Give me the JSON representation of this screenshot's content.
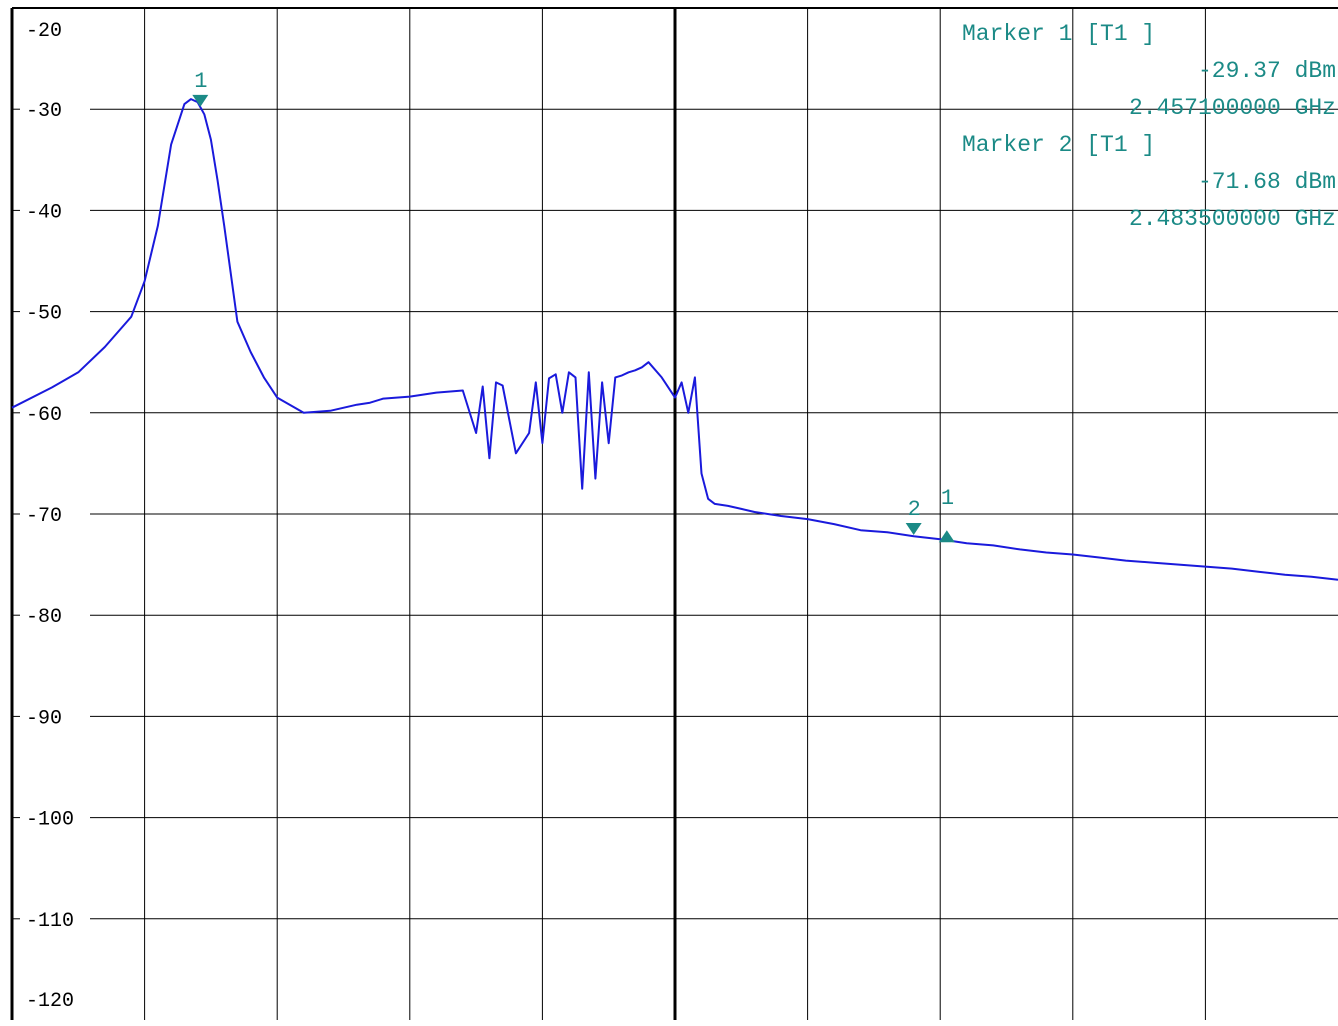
{
  "chart_data": {
    "type": "line",
    "title": "",
    "xlabel": "",
    "ylabel": "",
    "ylim": [
      -120,
      -20
    ],
    "y_ticks": [
      -20,
      -30,
      -40,
      -50,
      -60,
      -70,
      -80,
      -90,
      -100,
      -110,
      -120
    ],
    "y_tick_labels": [
      "-20",
      "-30",
      "-40",
      "-50",
      "-60",
      "-70",
      "-80",
      "-90",
      "-100",
      "-110",
      "-120"
    ],
    "x_range_divisions": [
      0,
      10
    ],
    "grid": true,
    "colors": {
      "trace": "#1a1adc",
      "marker": "#1b8a86",
      "grid": "#000000",
      "axis": "#000000",
      "background": "#ffffff"
    },
    "series": [
      {
        "values_note_x_in_divisions": "",
        "x": [
          0.0,
          0.3,
          0.5,
          0.7,
          0.9,
          1.0,
          1.1,
          1.2,
          1.3,
          1.35,
          1.4,
          1.45,
          1.5,
          1.55,
          1.6,
          1.7,
          1.8,
          1.9,
          2.0,
          2.2,
          2.4,
          2.6,
          2.7,
          2.8,
          3.0,
          3.2,
          3.4,
          3.5,
          3.55,
          3.6,
          3.65,
          3.7,
          3.8,
          3.9,
          3.95,
          4.0,
          4.05,
          4.1,
          4.15,
          4.2,
          4.25,
          4.3,
          4.35,
          4.4,
          4.45,
          4.5,
          4.55,
          4.6,
          4.65,
          4.7,
          4.75,
          4.8,
          4.9,
          5.0,
          5.05,
          5.1,
          5.15,
          5.2,
          5.25,
          5.3,
          5.4,
          5.5,
          5.6,
          5.8,
          6.0,
          6.2,
          6.4,
          6.6,
          6.8,
          7.0,
          7.2,
          7.4,
          7.6,
          7.8,
          8.0,
          8.2,
          8.4,
          8.6,
          8.8,
          9.0,
          9.2,
          9.4,
          9.6,
          9.8,
          10.0
        ],
        "y": [
          -59.5,
          -57.5,
          -56.0,
          -53.5,
          -50.5,
          -47.0,
          -41.5,
          -33.5,
          -29.5,
          -29.0,
          -29.3,
          -30.5,
          -33.0,
          -37.0,
          -41.5,
          -51.0,
          -54.0,
          -56.5,
          -58.5,
          -60.0,
          -59.8,
          -59.2,
          -59.0,
          -58.6,
          -58.4,
          -58.0,
          -57.8,
          -62.0,
          -57.4,
          -64.5,
          -57.0,
          -57.3,
          -64.0,
          -62.0,
          -57.0,
          -63.0,
          -56.6,
          -56.2,
          -60.0,
          -56.0,
          -56.5,
          -67.5,
          -56.0,
          -66.5,
          -57.0,
          -63.0,
          -56.5,
          -56.3,
          -56.0,
          -55.8,
          -55.5,
          -55.0,
          -56.5,
          -58.5,
          -57.0,
          -60.0,
          -56.5,
          -66.0,
          -68.5,
          -69.0,
          -69.2,
          -69.5,
          -69.8,
          -70.2,
          -70.5,
          -71.0,
          -71.6,
          -71.8,
          -72.2,
          -72.5,
          -72.9,
          -73.1,
          -73.5,
          -73.8,
          -74.0,
          -74.3,
          -74.6,
          -74.8,
          -75.0,
          -75.2,
          -75.4,
          -75.7,
          -76.0,
          -76.2,
          -76.5
        ]
      }
    ],
    "markers": [
      {
        "label": "1",
        "x": 1.42,
        "y": -29.37,
        "symbol": "down-triangle"
      },
      {
        "label": "2",
        "x": 6.8,
        "y": -71.68,
        "symbol": "down-triangle"
      },
      {
        "label": "1",
        "x": 7.05,
        "y": -72.0,
        "symbol": "up-triangle"
      }
    ],
    "marker_readout": [
      {
        "name": "Marker 1 [T1 ]",
        "level": "-29.37 dBm",
        "frequency": "2.457100000 GHz"
      },
      {
        "name": "Marker 2 [T1 ]",
        "level": "-71.68 dBm",
        "frequency": "2.483500000 GHz"
      }
    ]
  }
}
